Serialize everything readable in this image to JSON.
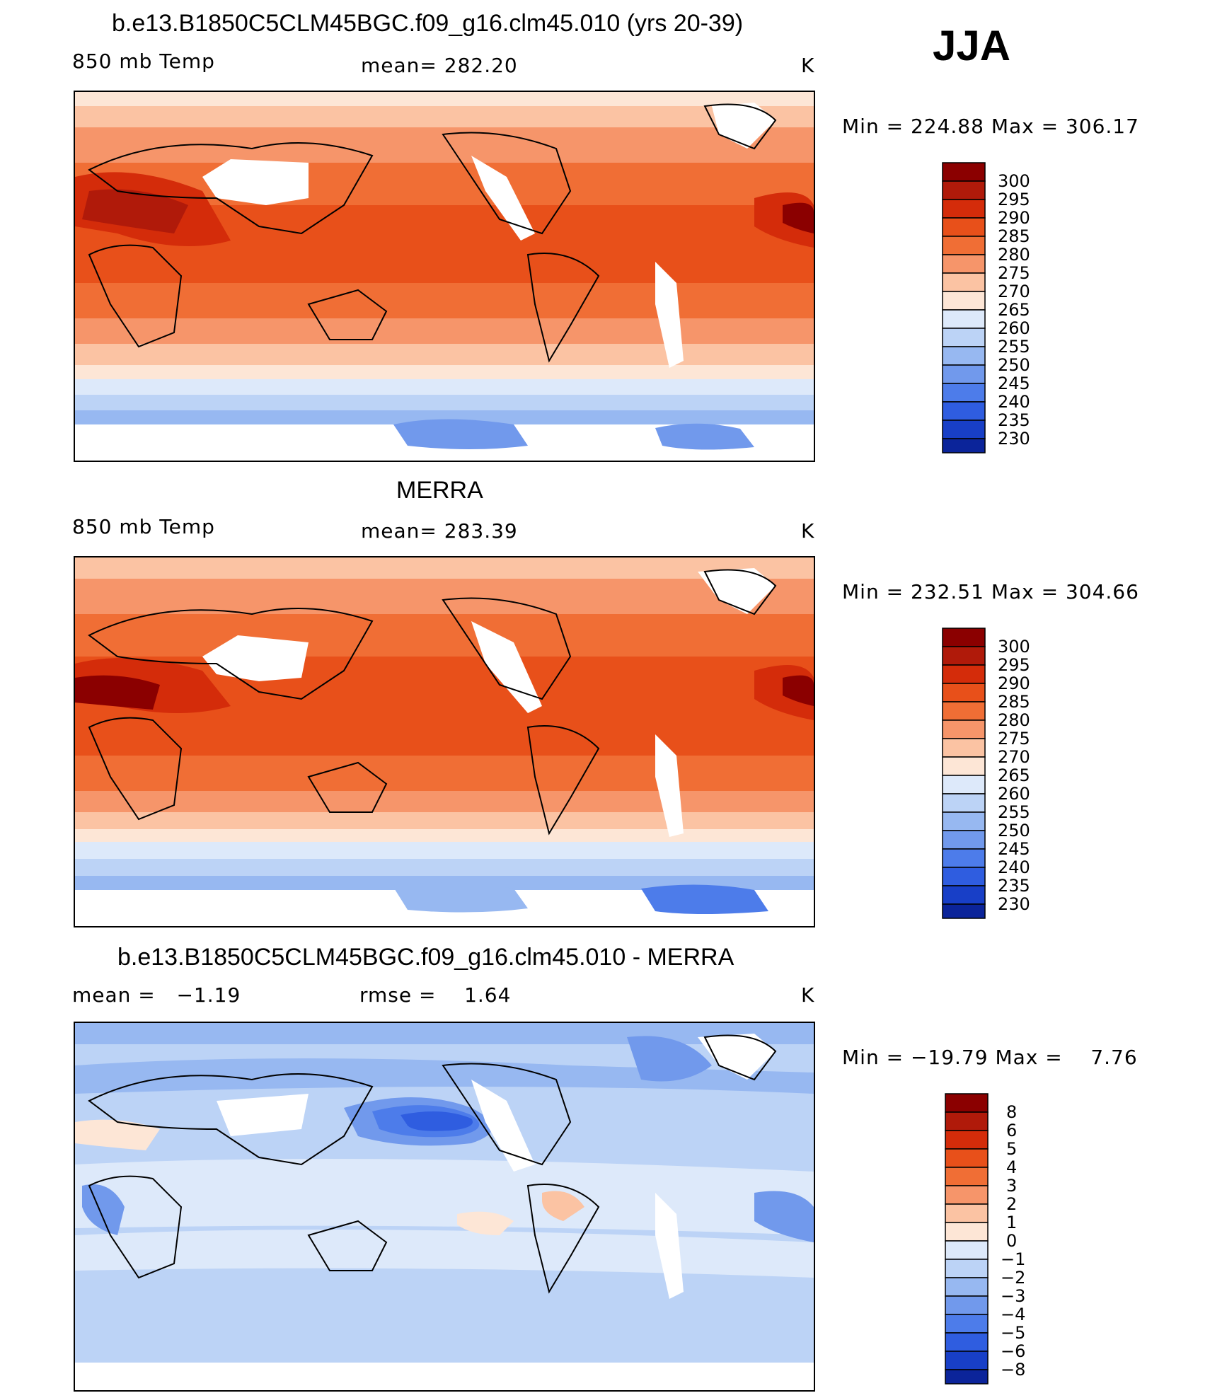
{
  "season": "JJA",
  "panels": [
    {
      "id": "model",
      "title": "b.e13.B1850C5CLM45BGC.f09_g16.clm45.010 (yrs 20-39)",
      "left_label": "850 mb Temp",
      "center_label": "mean= 282.20",
      "units": "K",
      "minmax": "Min = 224.88 Max = 306.17",
      "legend": [
        "300",
        "295",
        "290",
        "285",
        "280",
        "275",
        "270",
        "265",
        "260",
        "255",
        "250",
        "245",
        "240",
        "235",
        "230"
      ]
    },
    {
      "id": "obs",
      "title": "MERRA",
      "left_label": "850 mb Temp",
      "center_label": "mean= 283.39",
      "units": "K",
      "minmax": "Min = 232.51 Max = 304.66",
      "legend": [
        "300",
        "295",
        "290",
        "285",
        "280",
        "275",
        "270",
        "265",
        "260",
        "255",
        "250",
        "245",
        "240",
        "235",
        "230"
      ]
    },
    {
      "id": "diff",
      "title": "b.e13.B1850C5CLM45BGC.f09_g16.clm45.010 - MERRA",
      "left_label": "mean =   −1.19",
      "center_label": "rmse =    1.64",
      "units": "K",
      "minmax": "Min = −19.79 Max =    7.76",
      "legend": [
        "8",
        "6",
        "5",
        "4",
        "3",
        "2",
        "1",
        "0",
        "−1",
        "−2",
        "−3",
        "−4",
        "−5",
        "−6",
        "−8"
      ]
    }
  ],
  "colors": {
    "temp_scale": [
      "#8b0000",
      "#b01a0a",
      "#d42c0a",
      "#e8501a",
      "#f06e35",
      "#f6956a",
      "#fbc3a3",
      "#fde6d6",
      "#dde9fa",
      "#bcd3f6",
      "#97b8f1",
      "#7199ec",
      "#4d7cea",
      "#2f5de0",
      "#183fc7",
      "#0b249a"
    ],
    "diff_scale": [
      "#8b0000",
      "#b01a0a",
      "#d42c0a",
      "#e8501a",
      "#f06e35",
      "#f6956a",
      "#fbc3a3",
      "#fde6d6",
      "#dde9fa",
      "#bcd3f6",
      "#97b8f1",
      "#7199ec",
      "#4d7cea",
      "#2f5de0",
      "#183fc7",
      "#0b249a"
    ]
  }
}
